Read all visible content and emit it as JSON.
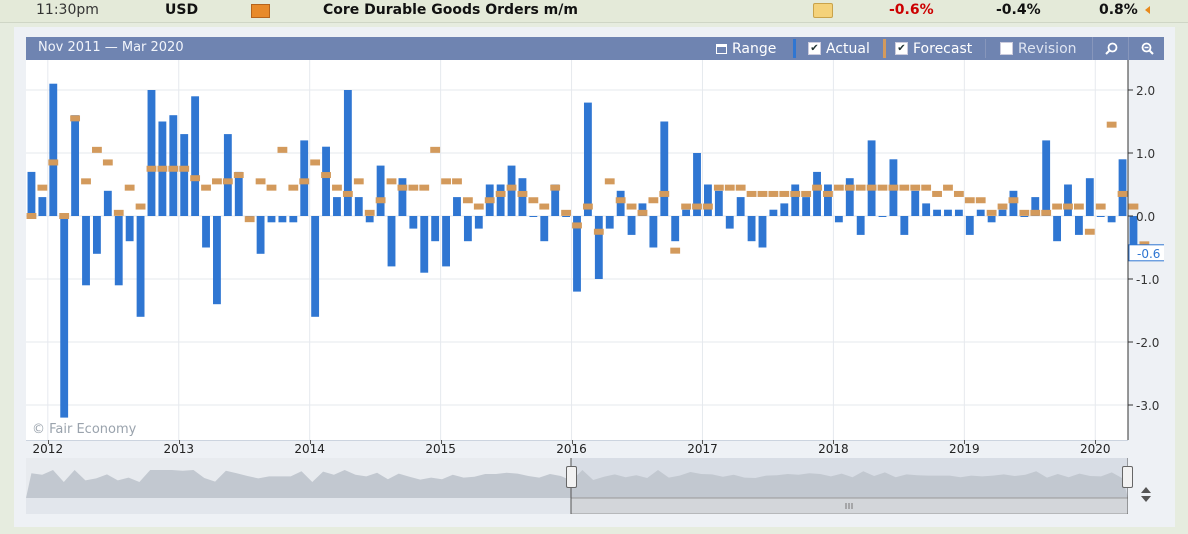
{
  "header": {
    "time": "11:30pm",
    "currency": "USD",
    "event": "Core Durable Goods Orders m/m",
    "actual": "-0.6%",
    "forecast": "-0.4%",
    "previous": "0.8%"
  },
  "toolbar": {
    "date_range": "Nov 2011 — Mar 2020",
    "range_label": "Range",
    "actual_label": "Actual",
    "forecast_label": "Forecast",
    "revision_label": "Revision",
    "actual_checked": true,
    "forecast_checked": true,
    "revision_checked": false
  },
  "watermark": "© Fair Economy",
  "colors": {
    "actual": "#2f76d2",
    "forecast": "#d39a5c",
    "toolbar": "#6f84b1",
    "negative": "#cc0000"
  },
  "chart_data": {
    "type": "bar",
    "x_start": "2011-11",
    "x_end": "2020-03",
    "year_labels": [
      "2012",
      "2013",
      "2014",
      "2015",
      "2016",
      "2017",
      "2018",
      "2019",
      "2020"
    ],
    "y_ticks": [
      "2.0",
      "1.0",
      "0.0",
      "-1.0",
      "-2.0",
      "-3.0"
    ],
    "ylim": [
      -3.2,
      2.2
    ],
    "current_value_label": "-0.6",
    "grid": true,
    "series": [
      {
        "name": "Actual",
        "values": [
          0.7,
          0.3,
          2.1,
          -3.2,
          1.6,
          -1.1,
          -0.6,
          0.4,
          -1.1,
          -0.4,
          -1.6,
          2.0,
          1.5,
          1.6,
          1.3,
          1.9,
          -0.5,
          -1.4,
          1.3,
          0.7,
          0,
          -0.6,
          -0.1,
          -0.1,
          -0.1,
          1.2,
          -1.6,
          1.1,
          0.3,
          2.0,
          0.3,
          -0.1,
          0.8,
          -0.8,
          0.6,
          -0.2,
          -0.9,
          -0.4,
          -0.8,
          0.3,
          -0.4,
          -0.2,
          0.5,
          0.5,
          0.8,
          0.6,
          0,
          -0.4,
          0.5,
          0,
          -1.2,
          1.8,
          -1.0,
          -0.2,
          0.4,
          -0.3,
          0.2,
          -0.5,
          1.5,
          -0.4,
          0.1,
          1.0,
          0.5,
          0.4,
          -0.2,
          0.3,
          -0.4,
          -0.5,
          0.1,
          0.2,
          0.5,
          0.3,
          0.7,
          0.5,
          -0.1,
          0.6,
          -0.3,
          1.2,
          0,
          0.9,
          -0.3,
          0.4,
          0.2,
          0.1,
          0.1,
          0.1,
          -0.3,
          0.1,
          -0.1,
          0.1,
          0.4,
          0,
          0.3,
          1.2,
          -0.4,
          0.5,
          -0.3,
          0.6,
          0,
          -0.1,
          0.9,
          -0.6
        ]
      },
      {
        "name": "Forecast",
        "values": [
          0,
          0.45,
          0.85,
          0,
          1.55,
          0.55,
          1.05,
          0.85,
          0.05,
          0.45,
          0.15,
          0.75,
          0.75,
          0.75,
          0.75,
          0.6,
          0.45,
          0.55,
          0.55,
          0.65,
          -0.05,
          0.55,
          0.45,
          1.05,
          0.45,
          0.55,
          0.85,
          0.65,
          0.45,
          0.35,
          0.55,
          0.05,
          0.25,
          0.55,
          0.45,
          0.45,
          0.45,
          1.05,
          0.55,
          0.55,
          0.25,
          0.15,
          0.25,
          0.35,
          0.45,
          0.35,
          0.25,
          0.15,
          0.45,
          0.05,
          -0.15,
          0.15,
          -0.25,
          0.55,
          0.25,
          0.15,
          0.05,
          0.25,
          0.35,
          -0.55,
          0.15,
          0.15,
          0.15,
          0.45,
          0.45,
          0.45,
          0.35,
          0.35,
          0.35,
          0.35,
          0.35,
          0.35,
          0.45,
          0.35,
          0.45,
          0.45,
          0.45,
          0.45,
          0.45,
          0.45,
          0.45,
          0.45,
          0.45,
          0.35,
          0.45,
          0.35,
          0.25,
          0.25,
          0.05,
          0.15,
          0.25,
          0.05,
          0.05,
          0.05,
          0.15,
          0.15,
          0.15,
          -0.25,
          0.15,
          1.45,
          0.35,
          0.15,
          -0.45
        ]
      }
    ]
  }
}
